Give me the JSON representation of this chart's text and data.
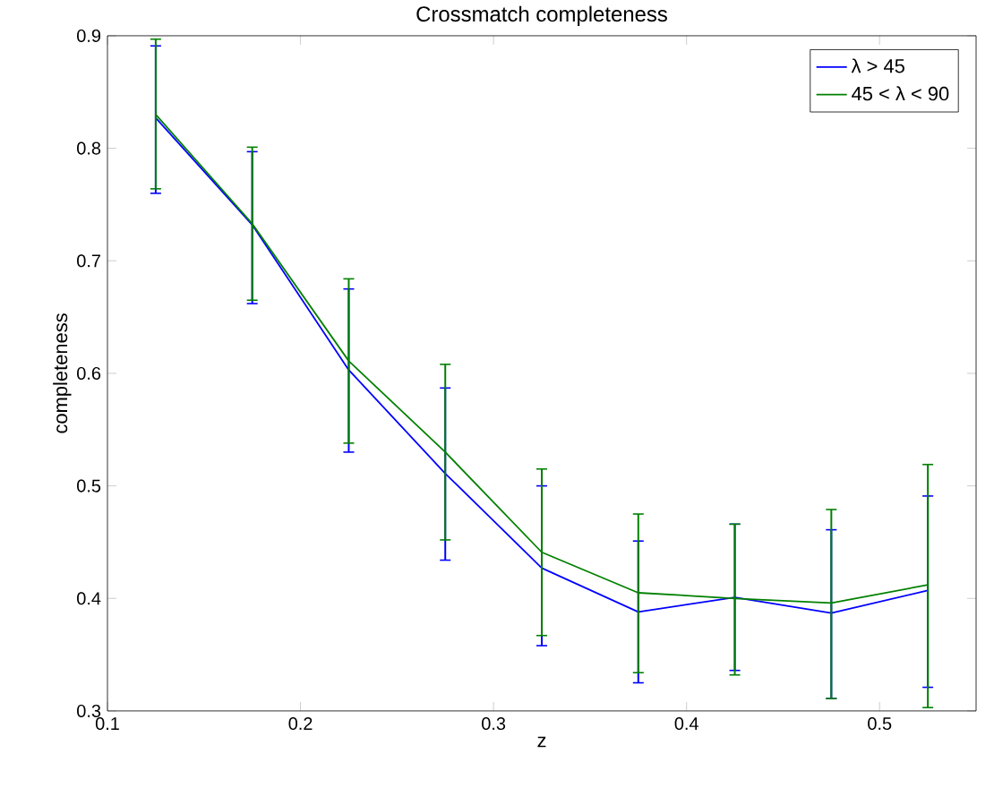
{
  "chart_data": {
    "type": "line",
    "title": "Crossmatch completeness",
    "xlabel": "z",
    "ylabel": "completeness",
    "x": [
      0.125,
      0.175,
      0.225,
      0.275,
      0.325,
      0.375,
      0.425,
      0.475,
      0.525
    ],
    "series": [
      {
        "name": "λ > 45",
        "color": "#0000ff",
        "values": [
          0.827,
          0.732,
          0.603,
          0.511,
          0.427,
          0.388,
          0.401,
          0.387,
          0.407
        ],
        "errors": [
          [
            0.76,
            0.891
          ],
          [
            0.662,
            0.797
          ],
          [
            0.53,
            0.675
          ],
          [
            0.434,
            0.587
          ],
          [
            0.358,
            0.5
          ],
          [
            0.325,
            0.451
          ],
          [
            0.336,
            0.466
          ],
          [
            0.311,
            0.461
          ],
          [
            0.321,
            0.491
          ]
        ]
      },
      {
        "name": "45 < λ < 90",
        "color": "#008000",
        "values": [
          0.83,
          0.733,
          0.611,
          0.53,
          0.441,
          0.405,
          0.4,
          0.396,
          0.412
        ],
        "errors": [
          [
            0.764,
            0.897
          ],
          [
            0.665,
            0.801
          ],
          [
            0.538,
            0.684
          ],
          [
            0.452,
            0.608
          ],
          [
            0.367,
            0.515
          ],
          [
            0.334,
            0.475
          ],
          [
            0.332,
            0.466
          ],
          [
            0.311,
            0.479
          ],
          [
            0.303,
            0.519
          ]
        ]
      }
    ],
    "xlim": [
      0.1,
      0.55
    ],
    "ylim": [
      0.3,
      0.9
    ],
    "xticks": [
      0.1,
      0.2,
      0.3,
      0.4,
      0.5
    ],
    "yticks": [
      0.3,
      0.4,
      0.5,
      0.6,
      0.7,
      0.8,
      0.9
    ],
    "legend": "top right",
    "grid": false,
    "marker": "none",
    "line_style": "solid"
  }
}
